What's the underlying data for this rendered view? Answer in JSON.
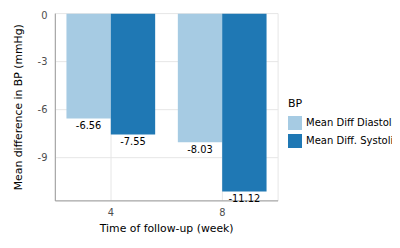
{
  "chart_data": {
    "type": "bar",
    "legend_title": "BP",
    "x_label": "Time of follow-up (week)",
    "y_label": "Mean difference in BP (mmHg)",
    "categories": [
      "4",
      "8"
    ],
    "series": [
      {
        "name": "Mean Diff Diastolic BP",
        "color": "#a6cbe3",
        "values": [
          -6.56,
          -8.03
        ]
      },
      {
        "name": "Mean Diff. Systolic BP",
        "color": "#1f78b4",
        "values": [
          -7.55,
          -11.12
        ]
      }
    ],
    "ylim": [
      -11.7,
      0
    ],
    "yticks": [
      -9,
      -6,
      -3,
      0
    ],
    "grid": true,
    "legend": "right",
    "data_labels": true
  }
}
